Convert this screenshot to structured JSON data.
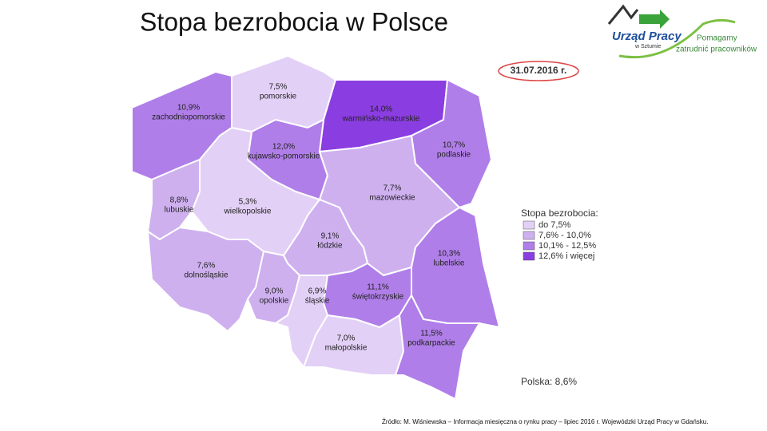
{
  "title": "Stopa bezrobocia w Polsce",
  "date": "31.07.2016 r.",
  "logo": {
    "name": "Urząd Pracy",
    "place": "w Sztumie",
    "slogan_line1": "Pomagamy",
    "slogan_line2": "zatrudnić pracowników"
  },
  "regions": [
    {
      "name": "zachodniopomorskie",
      "value": 10.9,
      "value_label": "10,9%",
      "color": "#b07ee8"
    },
    {
      "name": "pomorskie",
      "value": 7.5,
      "value_label": "7,5%",
      "color": "#e3d0f6"
    },
    {
      "name": "warmińsko-mazurskie",
      "value": 14.0,
      "value_label": "14,0%",
      "color": "#8a3de0"
    },
    {
      "name": "podlaskie",
      "value": 10.7,
      "value_label": "10,7%",
      "color": "#b07ee8"
    },
    {
      "name": "kujawsko-pomorskie",
      "value": 12.0,
      "value_label": "12,0%",
      "color": "#b07ee8"
    },
    {
      "name": "lubuskie",
      "value": 8.8,
      "value_label": "8,8%",
      "color": "#ceb0ef"
    },
    {
      "name": "wielkopolskie",
      "value": 5.3,
      "value_label": "5,3%",
      "color": "#e3d0f6"
    },
    {
      "name": "mazowieckie",
      "value": 7.7,
      "value_label": "7,7%",
      "color": "#ceb0ef"
    },
    {
      "name": "łódzkie",
      "value": 9.1,
      "value_label": "9,1%",
      "color": "#ceb0ef"
    },
    {
      "name": "lubelskie",
      "value": 10.3,
      "value_label": "10,3%",
      "color": "#b07ee8"
    },
    {
      "name": "dolnośląskie",
      "value": 7.6,
      "value_label": "7,6%",
      "color": "#ceb0ef"
    },
    {
      "name": "opolskie",
      "value": 9.0,
      "value_label": "9,0%",
      "color": "#ceb0ef"
    },
    {
      "name": "śląskie",
      "value": 6.9,
      "value_label": "6,9%",
      "color": "#e3d0f6"
    },
    {
      "name": "świętokrzyskie",
      "value": 11.1,
      "value_label": "11,1%",
      "color": "#b07ee8"
    },
    {
      "name": "małopolskie",
      "value": 7.0,
      "value_label": "7,0%",
      "color": "#e3d0f6"
    },
    {
      "name": "podkarpackie",
      "value": 11.5,
      "value_label": "11,5%",
      "color": "#b07ee8"
    }
  ],
  "legend": {
    "title": "Stopa bezrobocia:",
    "classes": [
      {
        "label": "do 7,5%",
        "color": "#e3d0f6"
      },
      {
        "label": "7,6% - 10,0%",
        "color": "#ceb0ef"
      },
      {
        "label": "10,1% - 12,5%",
        "color": "#b07ee8"
      },
      {
        "label": "12,6% i więcej",
        "color": "#8a3de0"
      }
    ]
  },
  "national": "Polska: 8,6%",
  "source": "Źródło: M. Wiśniewska – Informacja miesięczna o rynku pracy – lipiec 2016 r. Wojewódzki Urząd Pracy w Gdańsku."
}
